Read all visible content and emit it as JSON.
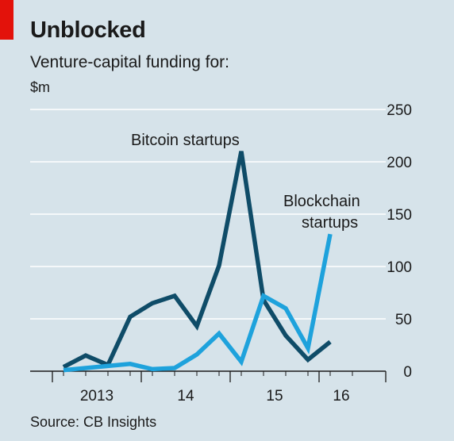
{
  "header": {
    "title": "Unblocked",
    "subtitle": "Venture-capital funding for:",
    "unit": "$m"
  },
  "footer": {
    "source": "Source: CB Insights"
  },
  "colors": {
    "bitcoin": "#0f4c68",
    "blockchain": "#1ea2dc",
    "grid": "#ffffff",
    "axis": "#1a1a1a",
    "accent": "#e3120b"
  },
  "chart_data": {
    "type": "line",
    "title": "Unblocked",
    "subtitle": "Venture-capital funding for:",
    "ylabel": "$m",
    "ylim": [
      0,
      250
    ],
    "yticks": [
      0,
      50,
      100,
      150,
      200,
      250
    ],
    "grid": true,
    "x_domain": [
      -1.5,
      14.5
    ],
    "x": [
      0,
      1,
      2,
      3,
      4,
      5,
      6,
      7,
      8,
      9,
      10,
      11,
      12,
      13
    ],
    "quarters": [
      "2013 Q1",
      "2013 Q2",
      "2013 Q3",
      "2013 Q4",
      "2014 Q1",
      "2014 Q2",
      "2014 Q3",
      "2014 Q4",
      "2015 Q1",
      "2015 Q2",
      "2015 Q3",
      "2015 Q4",
      "2016 Q1",
      "2016 Q2"
    ],
    "year_ticks": [
      {
        "label": "2013",
        "x": 1.5
      },
      {
        "label": "14",
        "x": 5.5
      },
      {
        "label": "15",
        "x": 9.5
      },
      {
        "label": "16",
        "x": 12.5
      }
    ],
    "year_boundaries": [
      -0.5,
      3.5,
      7.5,
      11.5,
      14.5
    ],
    "series": [
      {
        "name": "Bitcoin startups",
        "values": [
          4,
          15,
          6,
          52,
          65,
          72,
          43,
          101,
          210,
          68,
          34,
          11,
          28,
          null
        ]
      },
      {
        "name": "Blockchain startups",
        "values": [
          1,
          3,
          5,
          7,
          2,
          3,
          16,
          36,
          9,
          72,
          60,
          22,
          131,
          null
        ]
      }
    ]
  }
}
